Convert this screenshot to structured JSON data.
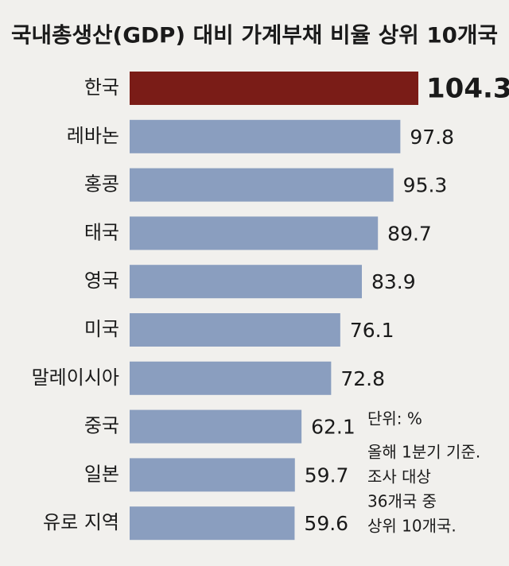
{
  "chart_data": {
    "type": "bar",
    "title": "국내총생산(GDP) 대비 가계부채 비율 상위 10개국",
    "categories": [
      "한국",
      "레바논",
      "홍콩",
      "태국",
      "영국",
      "미국",
      "말레이시아",
      "중국",
      "일본",
      "유로 지역"
    ],
    "values": [
      104.3,
      97.8,
      95.3,
      89.7,
      83.9,
      76.1,
      72.8,
      62.1,
      59.7,
      59.6
    ],
    "colors": [
      "#7a1c17",
      "#8a9ebf",
      "#8a9ebf",
      "#8a9ebf",
      "#8a9ebf",
      "#8a9ebf",
      "#8a9ebf",
      "#8a9ebf",
      "#8a9ebf",
      "#8a9ebf"
    ],
    "notes": [
      "단위: %",
      "올해 1분기 기준.",
      "조사 대상",
      "36개국 중",
      "상위 10개국."
    ]
  }
}
